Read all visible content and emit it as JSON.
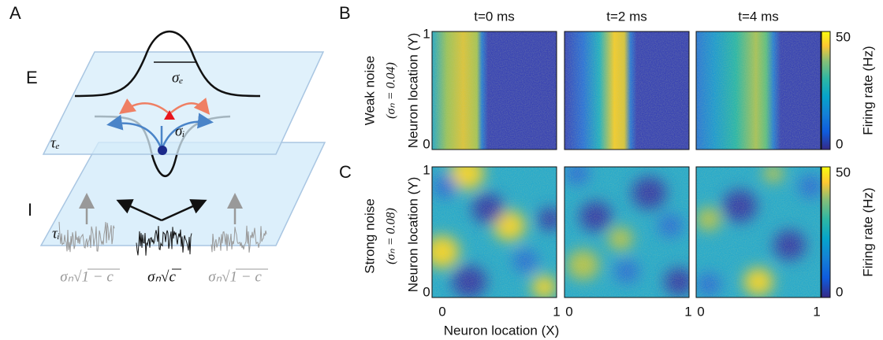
{
  "panel_a": {
    "label": "A",
    "layer_excitatory": "E",
    "layer_inhibitory": "I",
    "tau_e": "τₑ",
    "tau_i": "τᵢ",
    "sigma_e": "σₑ",
    "sigma_i": "σᵢ",
    "noise_private_left": "σₙ√1 − c",
    "noise_shared": "σₙ√c",
    "noise_private_right": "σₙ√1 − c"
  },
  "panel_b": {
    "label": "B",
    "row_title": "Weak noise",
    "row_subtitle": "(σₙ = 0.04)",
    "times": [
      "t=0 ms",
      "t=2 ms",
      "t=4 ms"
    ],
    "y_label": "Neuron location (Y)",
    "y_ticks": [
      0,
      1
    ],
    "colorbar_label": "Firing rate (Hz)",
    "colorbar_ticks": [
      0,
      50
    ]
  },
  "panel_c": {
    "label": "C",
    "row_title": "Strong noise",
    "row_subtitle": "(σₙ = 0.08)",
    "y_label": "Neuron location (Y)",
    "y_ticks": [
      0,
      1
    ],
    "x_label": "Neuron location (X)",
    "x_ticks": [
      0,
      1
    ],
    "colorbar_label": "Firing rate (Hz)",
    "colorbar_ticks": [
      0,
      50
    ]
  }
}
